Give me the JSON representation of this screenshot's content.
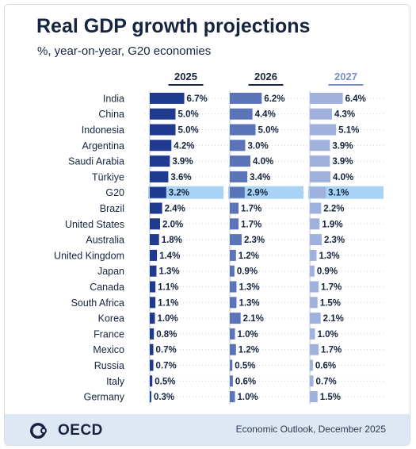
{
  "title": "Real GDP growth projections",
  "subtitle": "%, year-on-year, G20 economies",
  "footer": {
    "logo_text": "OECD",
    "source": "Economic Outlook, December 2025"
  },
  "colors": {
    "bar_2025": "#1f3a8f",
    "bar_2026": "#5b74b8",
    "bar_2027": "#9fb1dc",
    "highlight": "#a9d3f5",
    "header_2025": "#16243f",
    "header_2026": "#16243f",
    "header_2027": "#7a8fc5"
  },
  "chart_data": {
    "type": "bar",
    "orientation": "horizontal",
    "highlight_category": "G20",
    "categories": [
      "India",
      "China",
      "Indonesia",
      "Argentina",
      "Saudi Arabia",
      "Türkiye",
      "G20",
      "Brazil",
      "United States",
      "Australia",
      "United Kingdom",
      "Japan",
      "Canada",
      "South Africa",
      "Korea",
      "France",
      "Mexico",
      "Russia",
      "Italy",
      "Germany"
    ],
    "series": [
      {
        "name": "2025",
        "values": [
          6.7,
          5.0,
          5.0,
          4.2,
          3.9,
          3.6,
          3.2,
          2.4,
          2.0,
          1.8,
          1.4,
          1.3,
          1.1,
          1.1,
          1.0,
          0.8,
          0.7,
          0.7,
          0.5,
          0.3
        ]
      },
      {
        "name": "2026",
        "values": [
          6.2,
          4.4,
          5.0,
          3.0,
          4.0,
          3.4,
          2.9,
          1.7,
          1.7,
          2.3,
          1.2,
          0.9,
          1.3,
          1.3,
          2.1,
          1.0,
          1.2,
          0.5,
          0.6,
          1.0
        ]
      },
      {
        "name": "2027",
        "values": [
          6.4,
          4.3,
          5.1,
          3.9,
          3.9,
          4.0,
          3.1,
          2.2,
          1.9,
          2.3,
          1.3,
          0.9,
          1.7,
          1.5,
          2.1,
          1.0,
          1.7,
          0.6,
          0.7,
          1.5
        ]
      }
    ],
    "value_suffix": "%"
  }
}
